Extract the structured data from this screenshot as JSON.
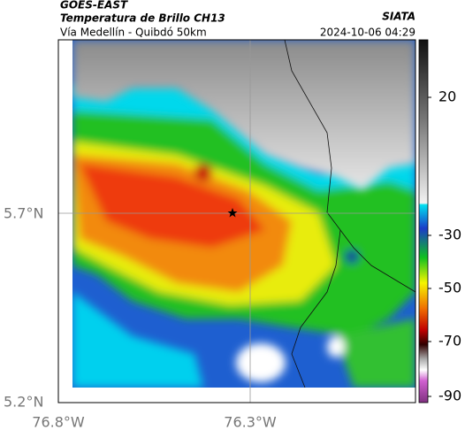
{
  "header": {
    "title": "GOES-EAST",
    "subtitle": "Temperatura de Brillo CH13",
    "route": "Vía Medellín - Quibdó 50km",
    "source": "SIATA",
    "timestamp": "2024-10-06 04:29"
  },
  "map": {
    "lat_labels": [
      "5.7°N",
      "5.2°N"
    ],
    "lon_labels": [
      "76.8°W",
      "76.3°W"
    ]
  },
  "colorbar": {
    "ticks": [
      20,
      -30,
      -50,
      -70,
      -90
    ]
  }
}
